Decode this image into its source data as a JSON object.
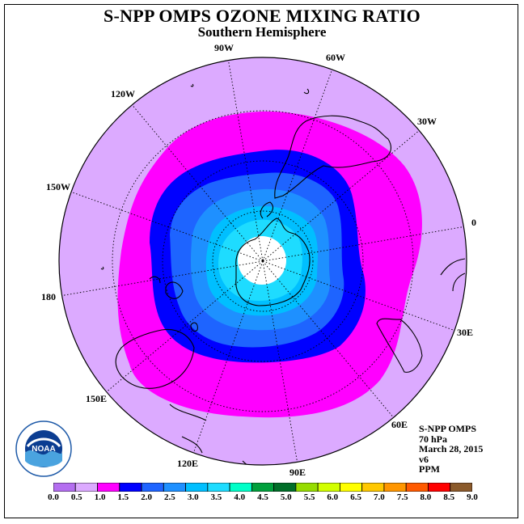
{
  "title": "S-NPP OMPS OZONE MIXING RATIO",
  "subtitle": "Southern Hemisphere",
  "longitude_labels": [
    "90W",
    "60W",
    "30W",
    "0",
    "30E",
    "60E",
    "90E",
    "120E",
    "150E",
    "180",
    "150W",
    "120W"
  ],
  "info": {
    "instrument": "S-NPP OMPS",
    "level": "70 hPa",
    "date": "March 28, 2015",
    "version": "v6",
    "units": "PPM"
  },
  "logo_text": "NOAA",
  "colorbar": {
    "ticks": [
      "0.0",
      "0.5",
      "1.0",
      "1.5",
      "2.0",
      "2.5",
      "3.0",
      "3.5",
      "4.0",
      "4.5",
      "5.0",
      "5.5",
      "6.0",
      "6.5",
      "7.0",
      "7.5",
      "8.0",
      "8.5",
      "9.0"
    ],
    "colors": [
      "#b46ef0",
      "#dcaaff",
      "#ff00ff",
      "#0000ff",
      "#1e64ff",
      "#1e90ff",
      "#00bfff",
      "#1edcff",
      "#00ffc8",
      "#00a03c",
      "#006e28",
      "#96dc00",
      "#d2ff00",
      "#ffff00",
      "#ffc800",
      "#ff9600",
      "#ff5a00",
      "#ff0000",
      "#8b5a2b"
    ]
  },
  "map_colors": {
    "background": "#dcaaff",
    "band_1_0": "#ff00ff",
    "band_1_5": "#0000ff",
    "band_2_0": "#1e64ff",
    "band_2_5": "#1e90ff",
    "band_3_0": "#00bfff",
    "band_3_5": "#1edcff",
    "no_data": "#ffffff"
  }
}
